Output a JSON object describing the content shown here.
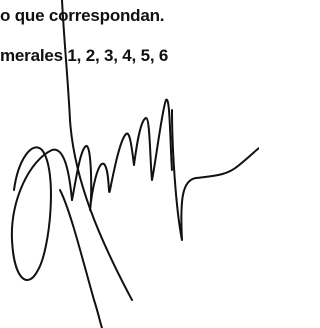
{
  "document": {
    "lines": [
      "o que correspondan.",
      "merales 1, 2, 3, 4, 5, 6"
    ]
  }
}
